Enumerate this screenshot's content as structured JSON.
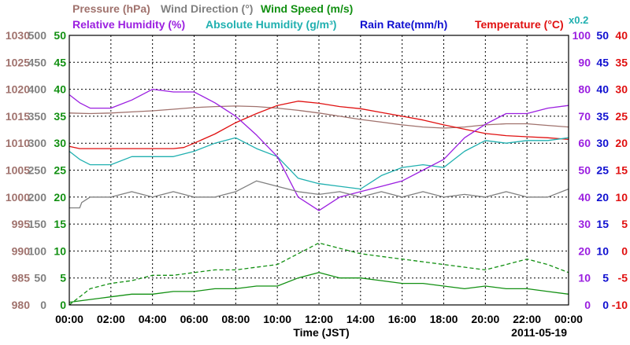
{
  "chart_data": {
    "type": "line",
    "date": "2011-05-19",
    "xlabel": "Time (JST)",
    "x_ticks": [
      "00:00",
      "02:00",
      "04:00",
      "06:00",
      "08:00",
      "10:00",
      "12:00",
      "14:00",
      "16:00",
      "18:00",
      "20:00",
      "22:00",
      "00:00"
    ],
    "scale_note": "x0.2",
    "x_range_hours": [
      0,
      24
    ],
    "grid": true,
    "legend_placement": "top",
    "axes": [
      {
        "id": "pressure",
        "ticks": [
          "1030",
          "1025",
          "1020",
          "1015",
          "1010",
          "1005",
          "1000",
          "995",
          "990",
          "985",
          "980"
        ],
        "range": [
          980,
          1030
        ],
        "color": "#a0726d",
        "side": "left"
      },
      {
        "id": "wind_dir",
        "ticks": [
          "500",
          "450",
          "400",
          "350",
          "300",
          "250",
          "200",
          "150",
          "100",
          "50",
          "0"
        ],
        "range": [
          0,
          500
        ],
        "color": "#808080",
        "side": "left"
      },
      {
        "id": "wind_speed",
        "ticks": [
          "50",
          "45",
          "40",
          "35",
          "30",
          "25",
          "20",
          "15",
          "10",
          "5",
          "0"
        ],
        "range": [
          0,
          50
        ],
        "color": "#129012",
        "side": "left"
      },
      {
        "id": "humidity",
        "ticks": [
          "100",
          "90",
          "80",
          "70",
          "60",
          "50",
          "40",
          "30",
          "20",
          "10",
          "0"
        ],
        "range": [
          0,
          100
        ],
        "color": "#9b1fe0",
        "side": "right"
      },
      {
        "id": "abs_hum",
        "ticks": [
          "50",
          "45",
          "40",
          "35",
          "30",
          "25",
          "20",
          "15",
          "10",
          "5",
          "0"
        ],
        "range": [
          0,
          50
        ],
        "color": "#1010d0",
        "side": "right"
      },
      {
        "id": "temperature",
        "ticks": [
          "40",
          "35",
          "30",
          "25",
          "20",
          "15",
          "10",
          "5",
          "0",
          "-5",
          "-10"
        ],
        "range": [
          -10,
          40
        ],
        "color": "#e01010",
        "side": "right"
      }
    ],
    "legend_row1": [
      {
        "label": "Pressure (hPa)",
        "color": "#a0726d"
      },
      {
        "label": "Wind Direction (°)",
        "color": "#808080"
      },
      {
        "label": "Wind Speed (m/s)",
        "color": "#129012"
      }
    ],
    "legend_row2": [
      {
        "label": "Relative Humidity (%)",
        "color": "#9b1fe0"
      },
      {
        "label": "Absolute Humidity (g/m³)",
        "color": "#20b0b0"
      },
      {
        "label": "Rain Rate(mm/h)",
        "color": "#1010d0"
      },
      {
        "label": "Temperature (°C)",
        "color": "#e01010"
      }
    ],
    "series": [
      {
        "id": "pressure",
        "name": "Pressure (hPa)",
        "color": "#a0726d",
        "axis": "pressure",
        "style": "solid",
        "x": [
          0,
          1,
          2,
          3,
          4,
          5,
          6,
          7,
          8,
          9,
          10,
          11,
          12,
          13,
          14,
          15,
          16,
          17,
          18,
          19,
          20,
          21,
          22,
          23,
          24
        ],
        "y": [
          1015.6,
          1015.5,
          1015.6,
          1015.8,
          1016.0,
          1016.3,
          1016.6,
          1016.8,
          1016.9,
          1016.8,
          1016.5,
          1016.1,
          1015.6,
          1015.0,
          1014.4,
          1013.9,
          1013.4,
          1013.0,
          1012.8,
          1013.0,
          1013.4,
          1013.6,
          1013.6,
          1013.3,
          1013.0
        ]
      },
      {
        "id": "temperature",
        "name": "Temperature (°C)",
        "color": "#e01010",
        "axis": "temperature",
        "style": "solid",
        "x": [
          0,
          0.5,
          1,
          2,
          3,
          4,
          5,
          5.5,
          6,
          7,
          8,
          9,
          10,
          11,
          12,
          13,
          14,
          15,
          16,
          17,
          18,
          19,
          20,
          21,
          22,
          23,
          24
        ],
        "y": [
          19.4,
          19.0,
          19.0,
          19.0,
          19.0,
          19.0,
          19.0,
          19.2,
          20.0,
          21.7,
          23.8,
          25.5,
          27.0,
          27.8,
          27.4,
          26.8,
          26.4,
          25.7,
          25.0,
          24.3,
          23.4,
          22.6,
          21.8,
          21.4,
          21.2,
          21.0,
          20.7
        ]
      },
      {
        "id": "abs_humidity",
        "name": "Absolute Humidity (g/m³)",
        "color": "#20b0b0",
        "axis": "humidity",
        "style": "solid",
        "x": [
          0,
          0.5,
          1,
          2,
          3,
          4,
          5,
          6,
          7,
          8,
          9,
          10,
          11,
          12,
          13,
          14,
          15,
          16,
          17,
          18,
          18.5,
          19,
          20,
          21,
          22,
          23,
          24
        ],
        "y": [
          57,
          54,
          52,
          52,
          55,
          55,
          55,
          57,
          60,
          62,
          58,
          55,
          47,
          45,
          44,
          43,
          48,
          51,
          52,
          51,
          54,
          57,
          61,
          60,
          61,
          61,
          62
        ]
      },
      {
        "id": "rel_humidity",
        "name": "Relative Humidity (%)",
        "color": "#9b1fe0",
        "axis": "humidity",
        "style": "solid",
        "x": [
          0,
          0.5,
          1,
          2,
          3,
          4,
          5,
          6,
          7,
          8,
          9,
          10,
          11,
          12,
          13,
          14,
          15,
          16,
          17,
          18,
          19,
          20,
          21,
          22,
          23,
          24
        ],
        "y": [
          78,
          75,
          73,
          73,
          76,
          80,
          79,
          79,
          75,
          70,
          63,
          55,
          40,
          35,
          40,
          42,
          44,
          46,
          50,
          54,
          62,
          67,
          71,
          71,
          73,
          74
        ]
      },
      {
        "id": "wind_dir",
        "name": "Wind Direction (°)",
        "color": "#808080",
        "axis": "wind_dir",
        "style": "solid",
        "x": [
          0,
          0.5,
          0.6,
          1.0,
          1.5,
          2,
          3,
          4,
          5,
          6,
          7,
          8,
          9,
          10,
          11,
          12,
          13,
          14,
          15,
          16,
          17,
          18,
          19,
          20,
          21,
          22,
          23,
          24
        ],
        "y": [
          180,
          180,
          190,
          200,
          200,
          200,
          210,
          200,
          210,
          200,
          200,
          210,
          230,
          220,
          210,
          205,
          210,
          200,
          210,
          200,
          210,
          200,
          205,
          200,
          210,
          200,
          200,
          215
        ]
      },
      {
        "id": "wind_speed_avg",
        "name": "Wind Speed (m/s)",
        "color": "#129012",
        "axis": "wind_speed",
        "style": "solid",
        "x": [
          0,
          1,
          2,
          3,
          4,
          5,
          6,
          7,
          8,
          9,
          10,
          11,
          12,
          13,
          14,
          15,
          16,
          17,
          18,
          19,
          20,
          21,
          22,
          23,
          24
        ],
        "y": [
          0.5,
          1.0,
          1.5,
          2.0,
          2.0,
          2.5,
          2.5,
          3.0,
          3.0,
          3.5,
          3.5,
          5.0,
          6.0,
          5.0,
          5.0,
          4.5,
          4.0,
          4.0,
          3.5,
          3.0,
          3.5,
          3.0,
          3.0,
          2.5,
          2.0
        ]
      },
      {
        "id": "wind_speed_gust",
        "name": "Wind Speed (m/s)",
        "color": "#129012",
        "axis": "wind_speed",
        "style": "dashed",
        "x": [
          0,
          0.5,
          1,
          2,
          3,
          4,
          5,
          6,
          7,
          8,
          9,
          10,
          11,
          12,
          13,
          14,
          15,
          16,
          17,
          18,
          19,
          20,
          21,
          22,
          23,
          24
        ],
        "y": [
          0,
          1.5,
          3.0,
          4.0,
          4.5,
          5.5,
          5.5,
          6.0,
          6.5,
          6.5,
          7.0,
          7.5,
          9.5,
          11.5,
          10.5,
          9.5,
          9.0,
          8.5,
          8.0,
          7.5,
          7.0,
          6.5,
          7.5,
          8.5,
          7.5,
          6.0
        ]
      }
    ]
  }
}
